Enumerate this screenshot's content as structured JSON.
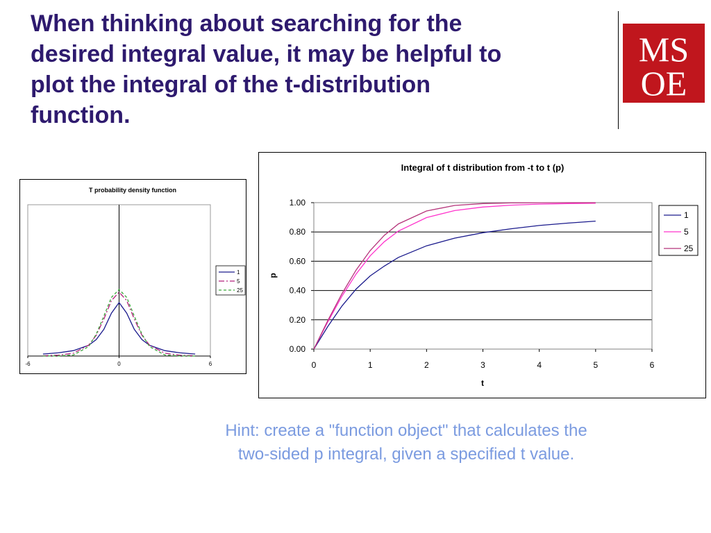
{
  "slide": {
    "title_lines": [
      "When thinking about searching for the",
      "desired integral value, it may be helpful to",
      "plot the integral of the t-distribution",
      "function."
    ],
    "hint_lines": [
      "Hint: create a \"function object\" that calculates the",
      "two-sided p integral, given a specified t value."
    ],
    "colors": {
      "title": "#2e1a6e",
      "hint": "#7b9be0",
      "logo_red": "#c0161d"
    }
  },
  "logo": {
    "letters_top": "MS",
    "letters_bottom": "OE"
  },
  "chart_data": [
    {
      "type": "line",
      "title": "T probability density function",
      "xlabel": "",
      "ylabel": "",
      "xlim": [
        -6,
        6
      ],
      "ylim": [
        0,
        0.9
      ],
      "xticks": [
        "-6",
        "0",
        "6"
      ],
      "grid": false,
      "legend": "right",
      "series": [
        {
          "name": "1",
          "color": "#1a1a8c",
          "dash": "solid",
          "x": [
            -5,
            -4,
            -3,
            -2,
            -1.5,
            -1,
            -0.5,
            0,
            0.5,
            1,
            1.5,
            2,
            3,
            4,
            5
          ],
          "y": [
            0.012,
            0.019,
            0.032,
            0.064,
            0.098,
            0.159,
            0.255,
            0.318,
            0.255,
            0.159,
            0.098,
            0.064,
            0.032,
            0.019,
            0.012
          ]
        },
        {
          "name": "5",
          "color": "#b01f7a",
          "dash": "dashdot",
          "x": [
            -5,
            -4,
            -3,
            -2,
            -1.5,
            -1,
            -0.5,
            0,
            0.5,
            1,
            1.5,
            2,
            3,
            4,
            5
          ],
          "y": [
            0.0018,
            0.0051,
            0.017,
            0.065,
            0.124,
            0.22,
            0.33,
            0.38,
            0.33,
            0.22,
            0.124,
            0.065,
            0.017,
            0.0051,
            0.0018
          ]
        },
        {
          "name": "25",
          "color": "#3aa83a",
          "dash": "dashed",
          "x": [
            -5,
            -4,
            -3,
            -2,
            -1.5,
            -1,
            -0.5,
            0,
            0.5,
            1,
            1.5,
            2,
            3,
            4,
            5
          ],
          "y": [
            0.0001,
            0.0007,
            0.006,
            0.056,
            0.13,
            0.238,
            0.349,
            0.396,
            0.349,
            0.238,
            0.13,
            0.056,
            0.006,
            0.0007,
            0.0001
          ]
        }
      ]
    },
    {
      "type": "line",
      "title": "Integral of t distribution from -t to t (p)",
      "xlabel": "t",
      "ylabel": "p",
      "xlim": [
        0,
        6
      ],
      "ylim": [
        0,
        1
      ],
      "xticks": [
        "0",
        "1",
        "2",
        "3",
        "4",
        "5",
        "6"
      ],
      "yticks": [
        "0.00",
        "0.20",
        "0.40",
        "0.60",
        "0.80",
        "1.00"
      ],
      "grid": true,
      "legend": "right",
      "series": [
        {
          "name": "1",
          "color": "#1a1a8c",
          "x": [
            0,
            0.25,
            0.5,
            0.75,
            1,
            1.25,
            1.5,
            2,
            2.5,
            3,
            3.5,
            4,
            4.5,
            5
          ],
          "y": [
            0,
            0.156,
            0.295,
            0.41,
            0.5,
            0.567,
            0.626,
            0.705,
            0.758,
            0.795,
            0.822,
            0.844,
            0.86,
            0.874
          ]
        },
        {
          "name": "5",
          "color": "#ff33cc",
          "x": [
            0,
            0.25,
            0.5,
            0.75,
            1,
            1.25,
            1.5,
            2,
            2.5,
            3,
            3.5,
            4,
            4.5,
            5
          ],
          "y": [
            0,
            0.187,
            0.362,
            0.513,
            0.637,
            0.733,
            0.806,
            0.898,
            0.946,
            0.97,
            0.983,
            0.99,
            0.994,
            0.996
          ]
        },
        {
          "name": "25",
          "color": "#b5337a",
          "x": [
            0,
            0.25,
            0.5,
            0.75,
            1,
            1.25,
            1.5,
            2,
            2.5,
            3,
            3.5,
            4,
            4.5,
            5
          ],
          "y": [
            0,
            0.196,
            0.379,
            0.54,
            0.673,
            0.777,
            0.855,
            0.943,
            0.981,
            0.994,
            0.998,
            0.9995,
            0.9999,
            1.0
          ]
        }
      ]
    }
  ]
}
